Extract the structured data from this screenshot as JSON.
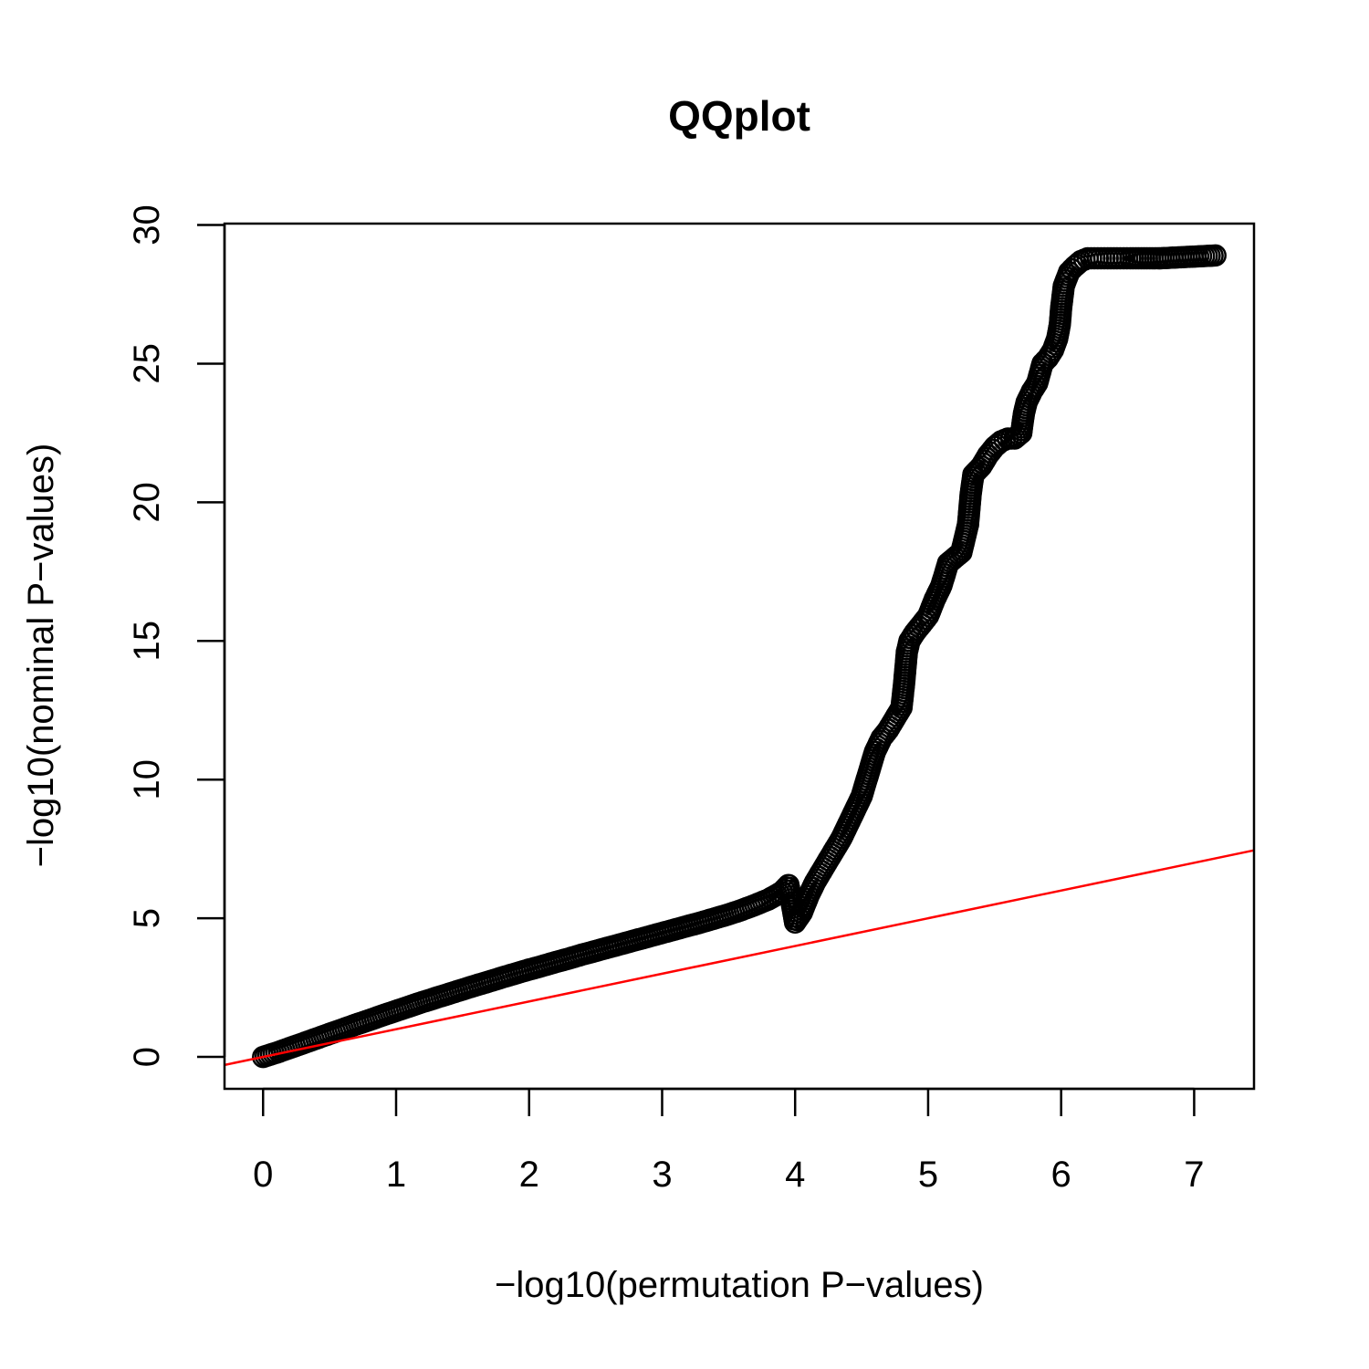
{
  "chart_data": {
    "type": "scatter",
    "title": "QQplot",
    "xlabel": "−log10(permutation P−values)",
    "ylabel": "−log10(nominal P−values)",
    "xlim": [
      -0.29,
      7.45
    ],
    "ylim": [
      -1.15,
      30.05
    ],
    "xticks": [
      "0",
      "1",
      "2",
      "3",
      "4",
      "5",
      "6",
      "7"
    ],
    "yticks": [
      "0",
      "5",
      "10",
      "15",
      "20",
      "25",
      "30"
    ],
    "grid": false,
    "legend": "none",
    "marker": "open-circle",
    "series": [
      {
        "color": "#000000",
        "points": [
          [
            0,
            0
          ],
          [
            0.1,
            0.15
          ],
          [
            0.2,
            0.32
          ],
          [
            0.3,
            0.49
          ],
          [
            0.4,
            0.66
          ],
          [
            0.5,
            0.83
          ],
          [
            0.6,
            1.0
          ],
          [
            0.7,
            1.17
          ],
          [
            0.8,
            1.33
          ],
          [
            0.9,
            1.5
          ],
          [
            1.0,
            1.66
          ],
          [
            1.1,
            1.82
          ],
          [
            1.2,
            1.98
          ],
          [
            1.3,
            2.13
          ],
          [
            1.4,
            2.28
          ],
          [
            1.5,
            2.43
          ],
          [
            1.6,
            2.58
          ],
          [
            1.7,
            2.72
          ],
          [
            1.8,
            2.87
          ],
          [
            1.9,
            3.01
          ],
          [
            2.0,
            3.15
          ],
          [
            2.1,
            3.28
          ],
          [
            2.2,
            3.42
          ],
          [
            2.3,
            3.55
          ],
          [
            2.4,
            3.69
          ],
          [
            2.5,
            3.82
          ],
          [
            2.6,
            3.95
          ],
          [
            2.7,
            4.08
          ],
          [
            2.8,
            4.21
          ],
          [
            2.9,
            4.34
          ],
          [
            3.0,
            4.47
          ],
          [
            3.1,
            4.6
          ],
          [
            3.2,
            4.73
          ],
          [
            3.3,
            4.86
          ],
          [
            3.4,
            5.0
          ],
          [
            3.5,
            5.14
          ],
          [
            3.6,
            5.3
          ],
          [
            3.7,
            5.48
          ],
          [
            3.8,
            5.68
          ],
          [
            3.9,
            5.95
          ],
          [
            3.95,
            6.2
          ],
          [
            4.0,
            4.85
          ],
          [
            4.05,
            5.2
          ],
          [
            4.1,
            5.8
          ],
          [
            4.15,
            6.3
          ],
          [
            4.2,
            6.7
          ],
          [
            4.25,
            7.1
          ],
          [
            4.3,
            7.5
          ],
          [
            4.35,
            7.9
          ],
          [
            4.4,
            8.4
          ],
          [
            4.45,
            8.9
          ],
          [
            4.5,
            9.4
          ],
          [
            4.55,
            10.2
          ],
          [
            4.6,
            11.0
          ],
          [
            4.65,
            11.5
          ],
          [
            4.7,
            11.8
          ],
          [
            4.75,
            12.2
          ],
          [
            4.8,
            12.6
          ],
          [
            4.82,
            13.5
          ],
          [
            4.84,
            14.6
          ],
          [
            4.86,
            15.0
          ],
          [
            4.9,
            15.3
          ],
          [
            4.95,
            15.6
          ],
          [
            5.0,
            15.9
          ],
          [
            5.05,
            16.5
          ],
          [
            5.1,
            17.0
          ],
          [
            5.15,
            17.8
          ],
          [
            5.2,
            18.0
          ],
          [
            5.25,
            18.2
          ],
          [
            5.3,
            19.2
          ],
          [
            5.32,
            20.3
          ],
          [
            5.34,
            21.0
          ],
          [
            5.4,
            21.3
          ],
          [
            5.45,
            21.7
          ],
          [
            5.5,
            22.0
          ],
          [
            5.55,
            22.2
          ],
          [
            5.6,
            22.3
          ],
          [
            5.65,
            22.3
          ],
          [
            5.7,
            22.5
          ],
          [
            5.72,
            23.2
          ],
          [
            5.74,
            23.6
          ],
          [
            5.78,
            24.0
          ],
          [
            5.82,
            24.3
          ],
          [
            5.86,
            25.0
          ],
          [
            5.9,
            25.2
          ],
          [
            5.94,
            25.5
          ],
          [
            5.97,
            25.9
          ],
          [
            5.99,
            26.4
          ],
          [
            6.0,
            27.0
          ],
          [
            6.02,
            27.8
          ],
          [
            6.06,
            28.3
          ],
          [
            6.1,
            28.5
          ],
          [
            6.15,
            28.7
          ],
          [
            6.2,
            28.8
          ],
          [
            6.25,
            28.8
          ],
          [
            6.35,
            28.8
          ],
          [
            6.42,
            28.8
          ],
          [
            6.47,
            28.8
          ],
          [
            6.52,
            28.8
          ],
          [
            6.75,
            28.8
          ],
          [
            7.16,
            28.9
          ]
        ]
      }
    ],
    "reference_line": {
      "type": "identity",
      "color": "#ff0000",
      "intercept": 0,
      "slope": 1
    }
  }
}
